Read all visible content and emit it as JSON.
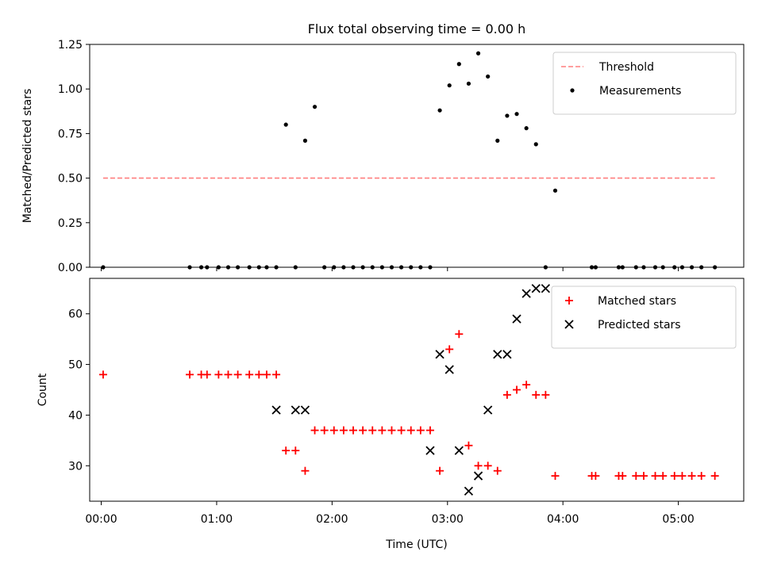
{
  "figure": {
    "title": "Flux total observing time = 0.00 h"
  },
  "chart_data": [
    {
      "type": "scatter",
      "ylabel": "Matched/Predicted stars",
      "xlim": [
        "23:54",
        "05:34"
      ],
      "ylim": [
        0,
        1.25
      ],
      "yticks": [
        "0.00",
        "0.25",
        "0.50",
        "0.75",
        "1.00",
        "1.25"
      ],
      "legend_position": "upper-right",
      "series": [
        {
          "name": "Threshold",
          "kind": "dashed-line",
          "color": "#ff7f7f",
          "x": [
            "00:01",
            "05:19"
          ],
          "y": [
            0.5,
            0.5
          ]
        },
        {
          "name": "Measurements",
          "kind": "dot",
          "color": "#000000",
          "x": [
            "00:01",
            "00:46",
            "00:52",
            "00:55",
            "01:01",
            "01:06",
            "01:11",
            "01:17",
            "01:22",
            "01:26",
            "01:31",
            "01:36",
            "01:41",
            "01:46",
            "01:51",
            "01:56",
            "02:01",
            "02:06",
            "02:11",
            "02:16",
            "02:21",
            "02:26",
            "02:31",
            "02:36",
            "02:41",
            "02:46",
            "02:51",
            "02:56",
            "03:01",
            "03:06",
            "03:11",
            "03:16",
            "03:21",
            "03:26",
            "03:31",
            "03:36",
            "03:41",
            "03:46",
            "03:51",
            "03:56",
            "04:15",
            "04:17",
            "04:29",
            "04:31",
            "04:38",
            "04:42",
            "04:48",
            "04:52",
            "04:58",
            "05:02",
            "05:07",
            "05:12",
            "05:19"
          ],
          "y": [
            0,
            0,
            0,
            0,
            0,
            0,
            0,
            0,
            0,
            0,
            0,
            0.8,
            0,
            0.71,
            0.9,
            0,
            0,
            0,
            0,
            0,
            0,
            0,
            0,
            0,
            0,
            0,
            0,
            0.88,
            1.02,
            1.14,
            1.03,
            1.2,
            1.07,
            0.71,
            0.85,
            0.86,
            0.78,
            0.69,
            0,
            0.43,
            0,
            0,
            0,
            0,
            0,
            0,
            0,
            0,
            0,
            0,
            0,
            0,
            0
          ]
        }
      ]
    },
    {
      "type": "scatter",
      "xlabel": "Time (UTC)",
      "ylabel": "Count",
      "xlim": [
        "23:54",
        "05:34"
      ],
      "ylim": [
        23,
        67
      ],
      "xticks": [
        "00:00",
        "01:00",
        "02:00",
        "03:00",
        "04:00",
        "05:00"
      ],
      "yticks": [
        "30",
        "40",
        "50",
        "60"
      ],
      "legend_position": "upper-right",
      "series": [
        {
          "name": "Matched stars",
          "marker": "plus",
          "color": "#ff0000",
          "x": [
            "00:01",
            "00:46",
            "00:52",
            "00:55",
            "01:01",
            "01:06",
            "01:11",
            "01:17",
            "01:22",
            "01:26",
            "01:31",
            "01:36",
            "01:41",
            "01:46",
            "01:51",
            "01:56",
            "02:01",
            "02:06",
            "02:11",
            "02:16",
            "02:21",
            "02:26",
            "02:31",
            "02:36",
            "02:41",
            "02:46",
            "02:51",
            "02:56",
            "03:01",
            "03:06",
            "03:11",
            "03:16",
            "03:21",
            "03:26",
            "03:31",
            "03:36",
            "03:41",
            "03:46",
            "03:51",
            "03:56",
            "04:15",
            "04:17",
            "04:29",
            "04:31",
            "04:38",
            "04:42",
            "04:48",
            "04:52",
            "04:58",
            "05:02",
            "05:07",
            "05:12",
            "05:19"
          ],
          "y": [
            48,
            48,
            48,
            48,
            48,
            48,
            48,
            48,
            48,
            48,
            48,
            33,
            33,
            29,
            37,
            37,
            37,
            37,
            37,
            37,
            37,
            37,
            37,
            37,
            37,
            37,
            37,
            29,
            53,
            56,
            34,
            30,
            30,
            29,
            44,
            45,
            46,
            44,
            44,
            28,
            28,
            28,
            28,
            28,
            28,
            28,
            28,
            28,
            28,
            28,
            28,
            28,
            28
          ]
        },
        {
          "name": "Predicted stars",
          "marker": "x",
          "color": "#000000",
          "x": [
            "01:31",
            "01:41",
            "01:46",
            "02:51",
            "02:56",
            "03:01",
            "03:06",
            "03:11",
            "03:16",
            "03:21",
            "03:26",
            "03:31",
            "03:36",
            "03:41",
            "03:46",
            "03:51"
          ],
          "y": [
            41,
            41,
            41,
            33,
            52,
            49,
            33,
            25,
            28,
            41,
            52,
            52,
            59,
            64,
            65,
            65
          ]
        }
      ]
    }
  ]
}
